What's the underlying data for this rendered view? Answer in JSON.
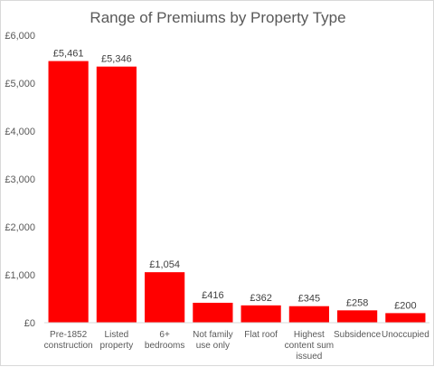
{
  "chart_data": {
    "type": "bar",
    "title": "Range of Premiums by Property Type",
    "xlabel": "",
    "ylabel": "",
    "ylim": [
      0,
      6000
    ],
    "yticks": [
      0,
      1000,
      2000,
      3000,
      4000,
      5000,
      6000
    ],
    "ytick_labels": [
      "£0",
      "£1,000",
      "£2,000",
      "£3,000",
      "£4,000",
      "£5,000",
      "£6,000"
    ],
    "categories": [
      [
        "Pre-1852",
        "construction"
      ],
      [
        "Listed",
        "property"
      ],
      [
        "6+",
        "bedrooms"
      ],
      [
        "Not family",
        "use only"
      ],
      [
        "Flat roof"
      ],
      [
        "Highest",
        "content sum",
        "issued"
      ],
      [
        "Subsidence"
      ],
      [
        "Unoccupied"
      ]
    ],
    "values": [
      5461,
      5346,
      1054,
      416,
      362,
      345,
      258,
      200
    ],
    "data_labels": [
      "£5,461",
      "£5,346",
      "£1,054",
      "£416",
      "£362",
      "£345",
      "£258",
      "£200"
    ],
    "bar_color": "#ff0000",
    "gridlines": false,
    "legend": "none"
  }
}
